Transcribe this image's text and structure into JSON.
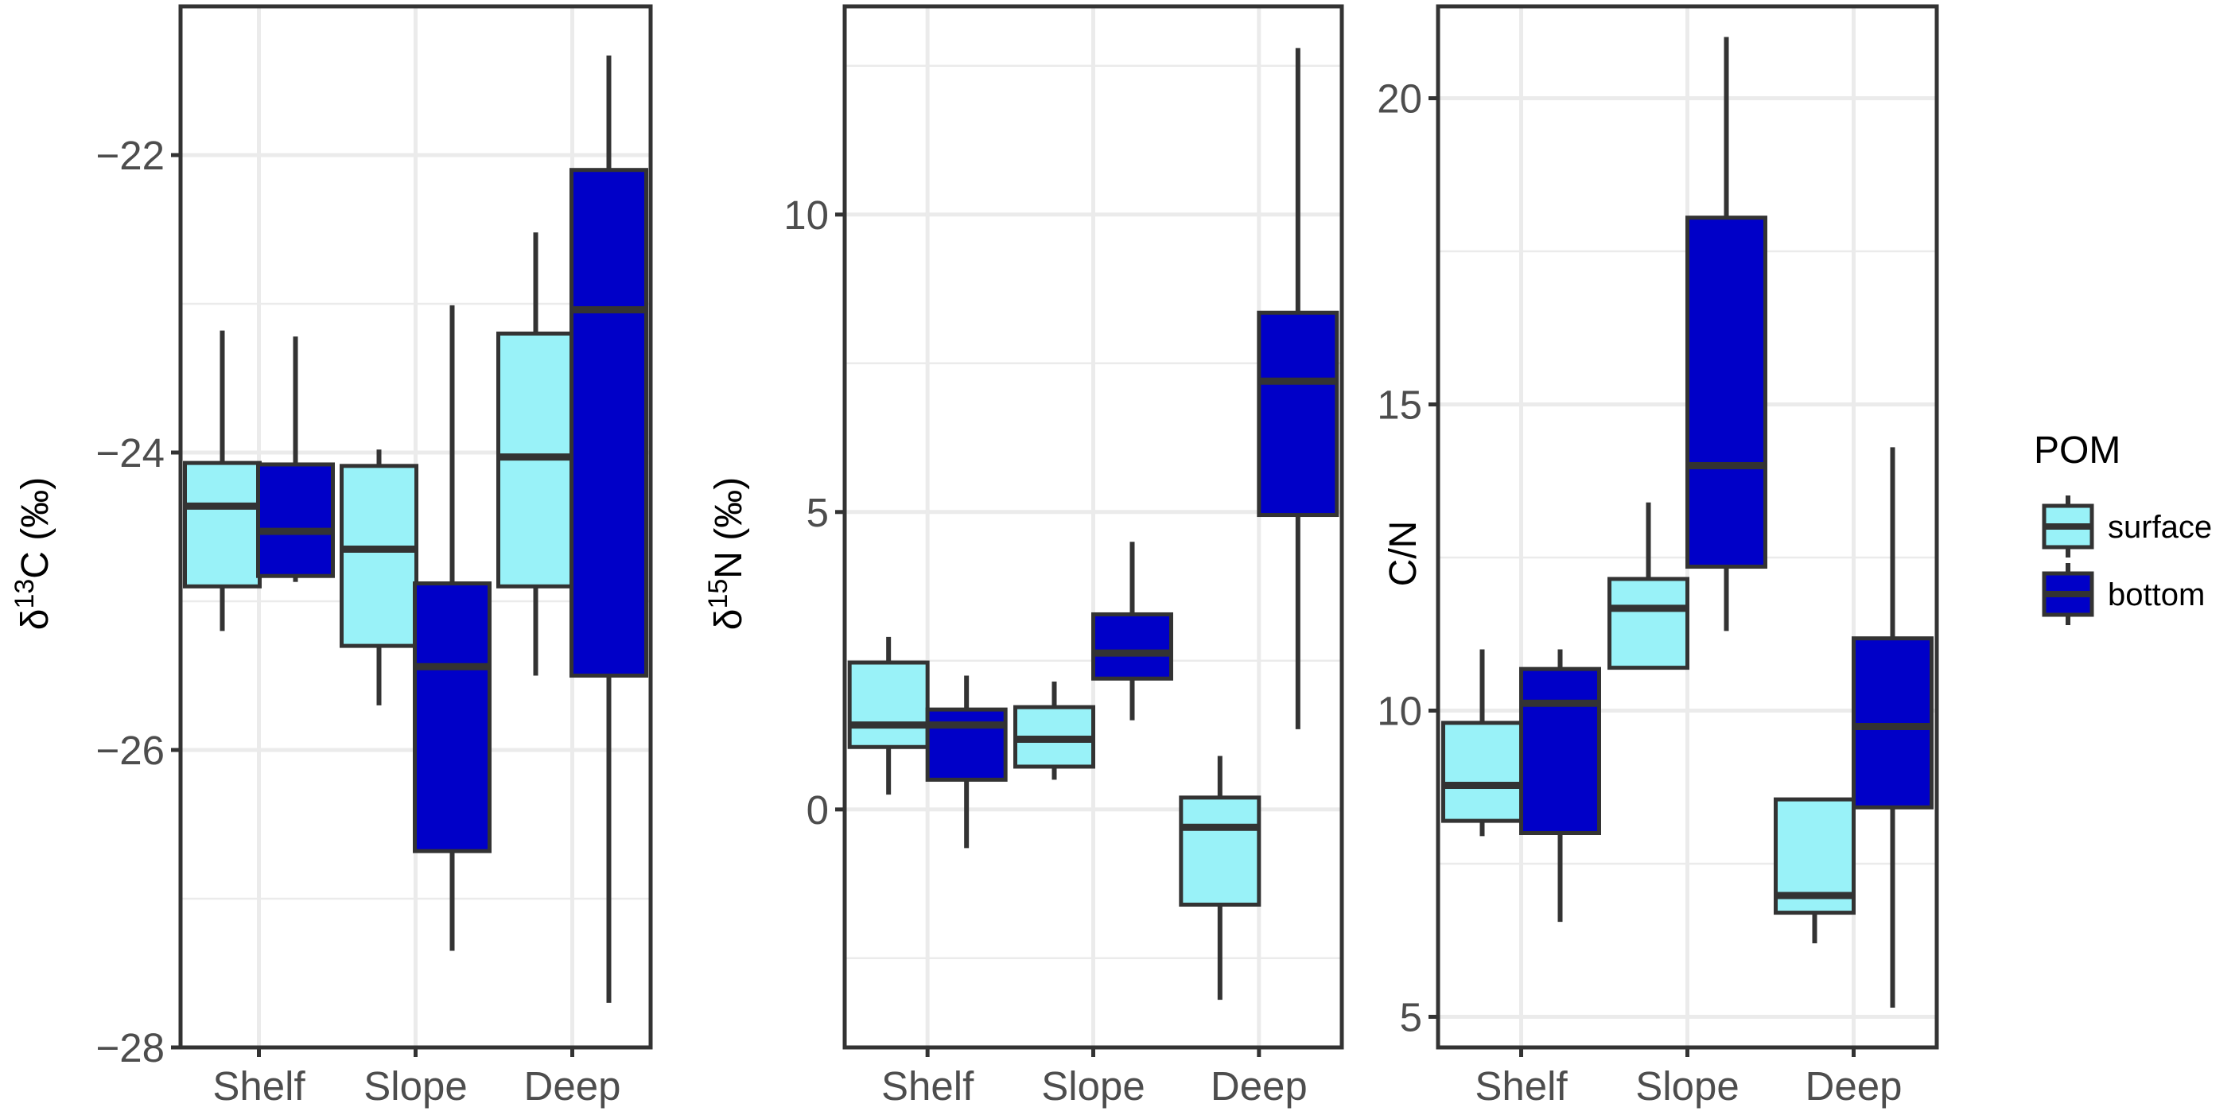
{
  "chart_data": [
    {
      "type": "boxplot",
      "ylabel": "δ13C (‰)",
      "ylabel_parts": {
        "symbol": "δ",
        "superscript": "13",
        "element": "C",
        "unit": "(‰)"
      },
      "categories": [
        "Shelf",
        "Slope",
        "Deep"
      ],
      "ylim": [
        -28,
        -21
      ],
      "yticks": [
        -28,
        -26,
        -24,
        -22
      ],
      "ytick_labels": [
        "−28",
        "−26",
        "−24",
        "−22"
      ],
      "series": [
        {
          "name": "surface",
          "color": "#99f2f8",
          "boxes": [
            {
              "min": -25.2,
              "q1": -24.9,
              "median": -24.36,
              "q3": -24.07,
              "max": -23.18
            },
            {
              "min": -25.7,
              "q1": -25.3,
              "median": -24.65,
              "q3": -24.09,
              "max": -23.98
            },
            {
              "min": -25.5,
              "q1": -24.9,
              "median": -24.03,
              "q3": -23.2,
              "max": -22.52
            }
          ]
        },
        {
          "name": "bottom",
          "color": "#0000c8",
          "boxes": [
            {
              "min": -24.87,
              "q1": -24.83,
              "median": -24.53,
              "q3": -24.08,
              "max": -23.22
            },
            {
              "min": -27.35,
              "q1": -26.68,
              "median": -25.44,
              "q3": -24.88,
              "max": -23.01
            },
            {
              "min": -27.7,
              "q1": -25.5,
              "median": -23.04,
              "q3": -22.1,
              "max": -21.33
            }
          ]
        }
      ]
    },
    {
      "type": "boxplot",
      "ylabel": "δ15N (‰)",
      "ylabel_parts": {
        "symbol": "δ",
        "superscript": "15",
        "element": "N",
        "unit": "(‰)"
      },
      "categories": [
        "Shelf",
        "Slope",
        "Deep"
      ],
      "ylim": [
        -4,
        13.5
      ],
      "yticks": [
        0,
        5,
        10
      ],
      "ytick_labels": [
        "0",
        "5",
        "10"
      ],
      "series": [
        {
          "name": "surface",
          "color": "#99f2f8",
          "boxes": [
            {
              "min": 0.25,
              "q1": 1.05,
              "median": 1.42,
              "q3": 2.47,
              "max": 2.9
            },
            {
              "min": 0.5,
              "q1": 0.72,
              "median": 1.18,
              "q3": 1.72,
              "max": 2.15
            },
            {
              "min": -3.2,
              "q1": -1.6,
              "median": -0.3,
              "q3": 0.2,
              "max": 0.9
            }
          ]
        },
        {
          "name": "bottom",
          "color": "#0000c8",
          "boxes": [
            {
              "min": -0.65,
              "q1": 0.5,
              "median": 1.42,
              "q3": 1.68,
              "max": 2.25
            },
            {
              "min": 1.5,
              "q1": 2.2,
              "median": 2.63,
              "q3": 3.28,
              "max": 4.5
            },
            {
              "min": 1.35,
              "q1": 4.95,
              "median": 7.2,
              "q3": 8.35,
              "max": 12.8
            }
          ]
        }
      ]
    },
    {
      "type": "boxplot",
      "ylabel": "C/N",
      "categories": [
        "Shelf",
        "Slope",
        "Deep"
      ],
      "ylim": [
        4.5,
        21.5
      ],
      "yticks": [
        5,
        10,
        15,
        20
      ],
      "ytick_labels": [
        "5",
        "10",
        "15",
        "20"
      ],
      "series": [
        {
          "name": "surface",
          "color": "#99f2f8",
          "boxes": [
            {
              "min": 7.95,
              "q1": 8.2,
              "median": 8.78,
              "q3": 9.8,
              "max": 11.0
            },
            {
              "min": 10.7,
              "q1": 10.7,
              "median": 11.67,
              "q3": 12.15,
              "max": 13.4
            },
            {
              "min": 6.2,
              "q1": 6.7,
              "median": 6.98,
              "q3": 8.55,
              "max": 8.55
            }
          ]
        },
        {
          "name": "bottom",
          "color": "#0000c8",
          "boxes": [
            {
              "min": 6.55,
              "q1": 8.0,
              "median": 10.12,
              "q3": 10.68,
              "max": 11.0
            },
            {
              "min": 11.3,
              "q1": 12.35,
              "median": 14.0,
              "q3": 18.05,
              "max": 21.0
            },
            {
              "min": 5.15,
              "q1": 8.42,
              "median": 9.74,
              "q3": 11.18,
              "max": 14.3
            }
          ]
        }
      ]
    }
  ],
  "legend": {
    "title": "POM",
    "placement": "right",
    "items": [
      {
        "label": "surface",
        "color": "#99f2f8"
      },
      {
        "label": "bottom",
        "color": "#0000c8"
      }
    ]
  }
}
